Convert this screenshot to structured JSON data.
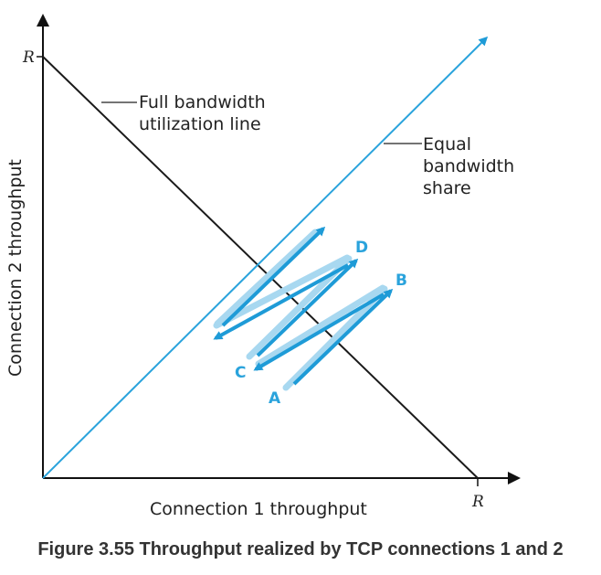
{
  "axes": {
    "x_label": "Connection 1 throughput",
    "y_label": "Connection 2 throughput",
    "x_max_label": "R",
    "y_max_label": "R"
  },
  "callouts": {
    "full_line": [
      "Full bandwidth",
      "utilization line"
    ],
    "equal_line": [
      "Equal",
      "bandwidth",
      "share"
    ]
  },
  "points": {
    "a": "A",
    "b": "B",
    "c": "C",
    "d": "D"
  },
  "colors": {
    "equal_line": "#2aa3dc",
    "full_line": "#1a1a1a",
    "arrow_light": "#a8d8f0",
    "arrow_dark": "#1e9bd7"
  },
  "caption": "Figure 3.55 Throughput realized by TCP connections 1 and 2"
}
